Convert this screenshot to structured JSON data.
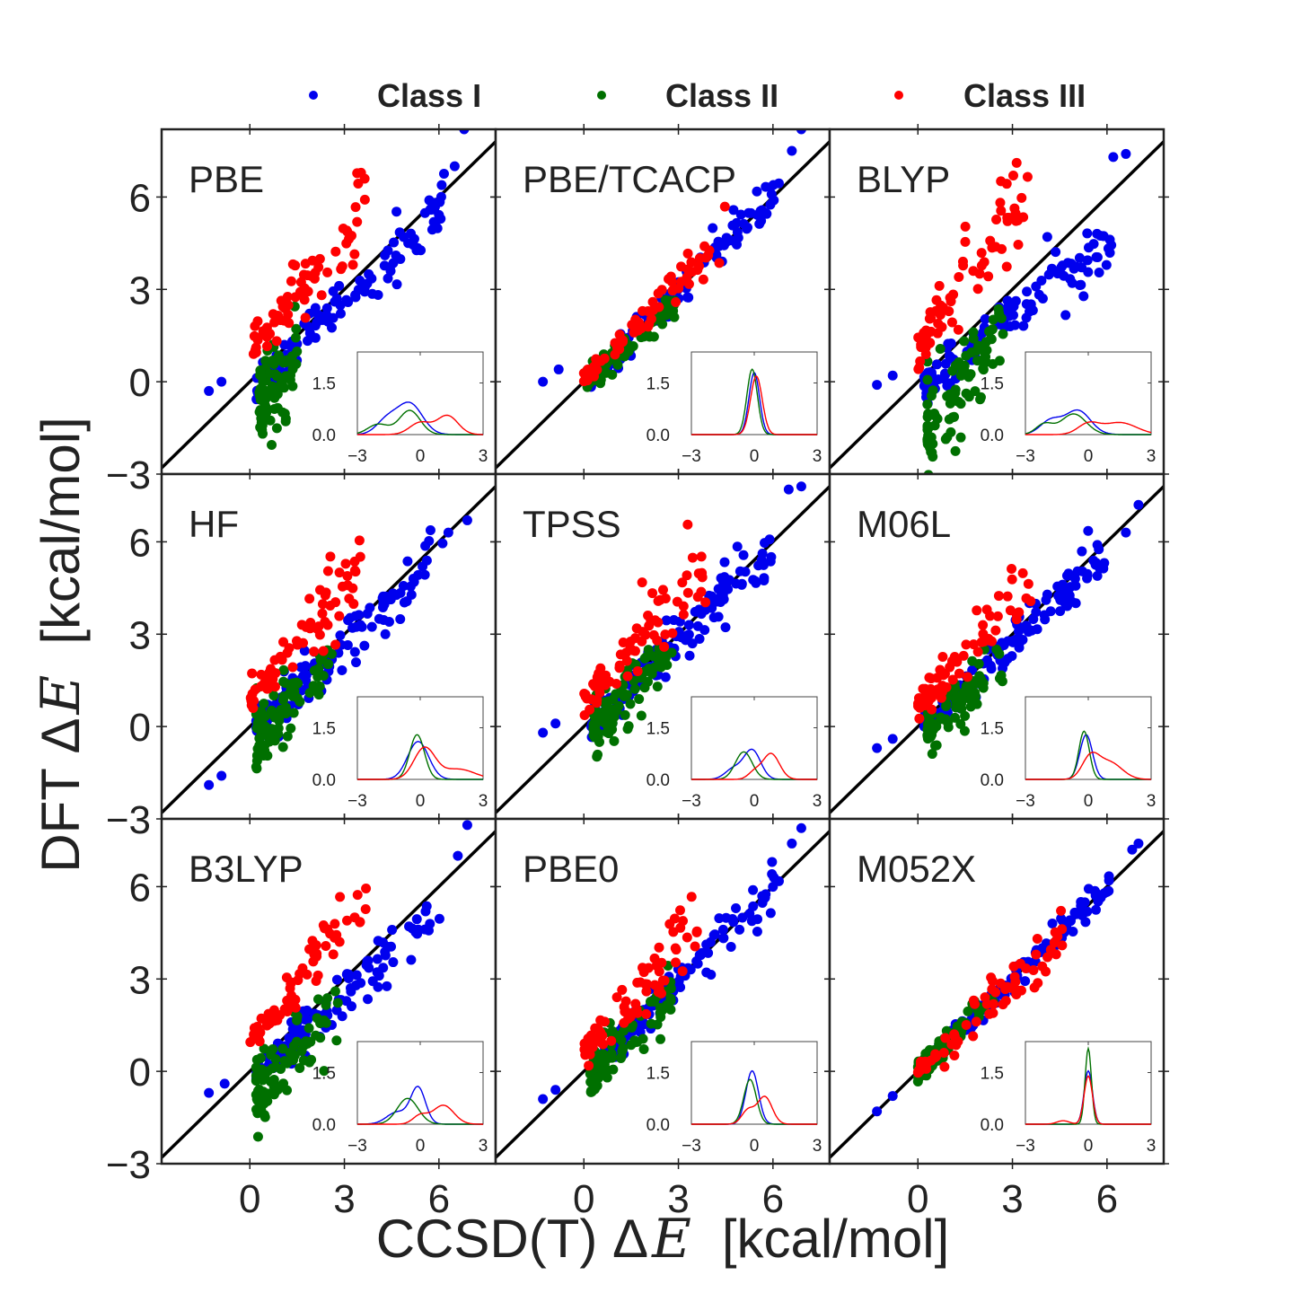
{
  "chart_data": {
    "type": "scatter",
    "layout": "3x3 grid of scatter panels with inset density plots",
    "xlabel_text": "CCSD(T) Δ",
    "ylabel_text": "DFT Δ",
    "label_symbol": "E",
    "unit_text": "[kcal/mol]",
    "xticks": [
      0,
      3,
      6
    ],
    "yticks": [
      -3,
      0,
      3,
      6
    ],
    "xtick_labels": [
      "0",
      "3",
      "6"
    ],
    "ytick_labels": [
      "−3",
      "0",
      "3",
      "6"
    ],
    "xlim": [
      -2.8,
      7.8
    ],
    "ylim": [
      -3.0,
      8.2
    ],
    "reference_line": "y = x",
    "legend": {
      "placement": "top",
      "entries": [
        {
          "label": "Class I",
          "color": "#0000ee"
        },
        {
          "label": "Class II",
          "color": "#007000"
        },
        {
          "label": "Class III",
          "color": "#ff0000"
        }
      ]
    },
    "inset": {
      "xlim": [
        -3,
        3
      ],
      "ylim": [
        0,
        2.4
      ],
      "xtick_labels": [
        "−3",
        "0",
        "3"
      ],
      "ytick_labels": [
        "0.0",
        "1.5"
      ],
      "xticks": [
        -3,
        0,
        3
      ],
      "yticks": [
        0,
        1.5
      ]
    },
    "panels": [
      {
        "title": "PBE",
        "class_I": {
          "slope": 0.99,
          "offset": -0.35,
          "spread": 0.45,
          "low": [
            -1.3,
            -1.0
          ],
          "high": [
            6.6,
            7.0
          ],
          "anchor": [
            [
              -1.3,
              -0.3
            ],
            [
              -0.9,
              0.0
            ],
            [
              6.8,
              8.2
            ],
            [
              6.5,
              7.0
            ]
          ]
        },
        "class_II": {
          "xmin": 0.3,
          "xmax": 1.5,
          "slope": 1.1,
          "offset": -1.0,
          "spread": 0.7
        },
        "class_III": {
          "xmin": 0.1,
          "xmax": 3.8,
          "slope": 1.25,
          "offset": 0.9,
          "spread": 0.6
        },
        "density": {
          "I": [
            [
              -0.5,
              0.9,
              0.6
            ],
            [
              -1.6,
              0.4,
              0.5
            ]
          ],
          "II": [
            [
              -0.5,
              0.7,
              0.5
            ],
            [
              -2.0,
              0.3,
              0.5
            ]
          ],
          "III": [
            [
              1.3,
              0.55,
              0.5
            ],
            [
              0.0,
              0.35,
              0.5
            ]
          ]
        }
      },
      {
        "title": "PBE/TCACP",
        "class_I": {
          "slope": 1.05,
          "offset": -0.2,
          "spread": 0.3,
          "low": [
            -1.4,
            -0.8
          ],
          "high": [
            6.7,
            7.0
          ],
          "anchor": [
            [
              -1.3,
              0.0
            ],
            [
              -0.8,
              0.4
            ],
            [
              6.9,
              8.2
            ],
            [
              6.6,
              7.5
            ]
          ]
        },
        "class_II": {
          "xmin": 0.1,
          "xmax": 2.9,
          "slope": 0.85,
          "offset": 0.0,
          "spread": 0.2
        },
        "class_III": {
          "xmin": 0.0,
          "xmax": 4.5,
          "slope": 1.0,
          "offset": 0.1,
          "spread": 0.25
        },
        "density": {
          "I": [
            [
              0.0,
              1.8,
              0.25
            ]
          ],
          "II": [
            [
              -0.1,
              1.9,
              0.25
            ]
          ],
          "III": [
            [
              0.1,
              1.7,
              0.28
            ]
          ]
        }
      },
      {
        "title": "BLYP",
        "class_I": {
          "slope": 0.85,
          "offset": -0.3,
          "spread": 0.55,
          "low": [
            -1.3,
            -0.8
          ],
          "high": [
            6.0,
            6.7
          ],
          "anchor": [
            [
              -1.3,
              -0.1
            ],
            [
              -0.8,
              0.2
            ],
            [
              6.6,
              7.4
            ],
            [
              6.2,
              7.3
            ]
          ]
        },
        "class_II": {
          "xmin": 0.3,
          "xmax": 2.7,
          "slope": 1.25,
          "offset": -1.7,
          "spread": 0.8
        },
        "class_III": {
          "xmin": 0.0,
          "xmax": 3.7,
          "slope": 1.55,
          "offset": 1.0,
          "spread": 0.7
        },
        "density": {
          "I": [
            [
              -0.5,
              0.7,
              0.6
            ],
            [
              -1.8,
              0.4,
              0.5
            ]
          ],
          "II": [
            [
              -0.7,
              0.6,
              0.6
            ],
            [
              -2.1,
              0.3,
              0.4
            ]
          ],
          "III": [
            [
              1.5,
              0.35,
              0.8
            ],
            [
              0.0,
              0.3,
              0.5
            ]
          ]
        }
      },
      {
        "title": "HF",
        "class_I": {
          "slope": 0.98,
          "offset": -0.3,
          "spread": 0.55,
          "low": [
            -1.3,
            -0.8
          ],
          "high": [
            6.0,
            6.9
          ],
          "anchor": [
            [
              -1.3,
              -1.9
            ],
            [
              -0.9,
              -1.6
            ],
            [
              6.9,
              6.7
            ],
            [
              6.3,
              6.3
            ]
          ]
        },
        "class_II": {
          "xmin": 0.2,
          "xmax": 2.6,
          "slope": 1.1,
          "offset": -0.6,
          "spread": 0.6
        },
        "class_III": {
          "xmin": 0.0,
          "xmax": 3.8,
          "slope": 1.3,
          "offset": 0.8,
          "spread": 0.6
        },
        "density": {
          "I": [
            [
              -0.1,
              1.1,
              0.5
            ]
          ],
          "II": [
            [
              -0.15,
              1.3,
              0.35
            ]
          ],
          "III": [
            [
              0.2,
              0.9,
              0.5
            ],
            [
              1.8,
              0.3,
              0.8
            ]
          ]
        }
      },
      {
        "title": "TPSS",
        "class_I": {
          "slope": 1.0,
          "offset": -0.2,
          "spread": 0.45,
          "low": [
            -1.3,
            -0.8
          ],
          "high": [
            6.3,
            6.8
          ],
          "anchor": [
            [
              -1.3,
              -0.2
            ],
            [
              -0.9,
              0.1
            ],
            [
              6.9,
              7.8
            ],
            [
              6.5,
              7.7
            ]
          ]
        },
        "class_II": {
          "xmin": 0.3,
          "xmax": 2.8,
          "slope": 1.0,
          "offset": -0.4,
          "spread": 0.45
        },
        "class_III": {
          "xmin": 0.0,
          "xmax": 3.9,
          "slope": 1.15,
          "offset": 0.7,
          "spread": 0.55
        },
        "density": {
          "I": [
            [
              -0.1,
              0.85,
              0.4
            ],
            [
              -1.0,
              0.3,
              0.4
            ]
          ],
          "II": [
            [
              -0.5,
              0.8,
              0.4
            ]
          ],
          "III": [
            [
              0.8,
              0.75,
              0.4
            ],
            [
              0.0,
              0.2,
              0.3
            ]
          ]
        }
      },
      {
        "title": "M06L",
        "class_I": {
          "slope": 1.0,
          "offset": -0.25,
          "spread": 0.35,
          "low": [
            -1.3,
            -0.8
          ],
          "high": [
            6.3,
            7.0
          ],
          "anchor": [
            [
              -1.3,
              -0.7
            ],
            [
              -0.8,
              -0.4
            ],
            [
              7.0,
              7.2
            ],
            [
              6.6,
              6.3
            ]
          ]
        },
        "class_II": {
          "xmin": 0.3,
          "xmax": 2.8,
          "slope": 0.95,
          "offset": -0.4,
          "spread": 0.45
        },
        "class_III": {
          "xmin": 0.0,
          "xmax": 3.8,
          "slope": 1.15,
          "offset": 0.6,
          "spread": 0.55
        },
        "density": {
          "I": [
            [
              -0.1,
              1.3,
              0.3
            ]
          ],
          "II": [
            [
              -0.2,
              1.4,
              0.25
            ]
          ],
          "III": [
            [
              0.1,
              0.6,
              0.4
            ],
            [
              1.0,
              0.5,
              0.6
            ]
          ]
        }
      },
      {
        "title": "B3LYP",
        "class_I": {
          "slope": 0.92,
          "offset": -0.3,
          "spread": 0.45,
          "low": [
            -1.3,
            -0.8
          ],
          "high": [
            6.3,
            7.0
          ],
          "anchor": [
            [
              -1.3,
              -0.7
            ],
            [
              -0.8,
              -0.4
            ],
            [
              6.9,
              8.0
            ],
            [
              6.6,
              7.0
            ]
          ]
        },
        "class_II": {
          "xmin": 0.2,
          "xmax": 2.8,
          "slope": 1.1,
          "offset": -0.9,
          "spread": 0.6
        },
        "class_III": {
          "xmin": 0.0,
          "xmax": 3.7,
          "slope": 1.35,
          "offset": 0.8,
          "spread": 0.55
        },
        "density": {
          "I": [
            [
              -0.1,
              1.05,
              0.35
            ],
            [
              -1.1,
              0.35,
              0.5
            ]
          ],
          "II": [
            [
              -0.6,
              0.75,
              0.5
            ]
          ],
          "III": [
            [
              1.1,
              0.55,
              0.5
            ],
            [
              0.0,
              0.25,
              0.35
            ]
          ]
        }
      },
      {
        "title": "PBE0",
        "class_I": {
          "slope": 1.02,
          "offset": -0.15,
          "spread": 0.35,
          "low": [
            -1.3,
            -0.8
          ],
          "high": [
            6.3,
            7.0
          ],
          "anchor": [
            [
              -1.3,
              -0.9
            ],
            [
              -0.9,
              -0.6
            ],
            [
              6.9,
              7.9
            ],
            [
              6.6,
              7.4
            ]
          ]
        },
        "class_II": {
          "xmin": 0.2,
          "xmax": 2.8,
          "slope": 1.0,
          "offset": -0.35,
          "spread": 0.4
        },
        "class_III": {
          "xmin": 0.0,
          "xmax": 3.8,
          "slope": 1.15,
          "offset": 0.6,
          "spread": 0.5
        },
        "density": {
          "I": [
            [
              -0.1,
              1.55,
              0.3
            ]
          ],
          "II": [
            [
              -0.2,
              1.3,
              0.3
            ]
          ],
          "III": [
            [
              0.5,
              0.8,
              0.35
            ],
            [
              -0.3,
              0.4,
              0.3
            ]
          ]
        }
      },
      {
        "title": "M052X",
        "class_I": {
          "slope": 1.0,
          "offset": 0.0,
          "spread": 0.22,
          "low": [
            -1.3,
            -0.8
          ],
          "high": [
            6.3,
            7.0
          ],
          "anchor": [
            [
              -1.3,
              -1.3
            ],
            [
              -0.8,
              -0.8
            ],
            [
              7.0,
              7.4
            ],
            [
              6.8,
              7.2
            ]
          ]
        },
        "class_II": {
          "xmin": 0.0,
          "xmax": 2.4,
          "slope": 1.0,
          "offset": 0.0,
          "spread": 0.2
        },
        "class_III": {
          "xmin": 0.0,
          "xmax": 4.6,
          "slope": 0.95,
          "offset": 0.0,
          "spread": 0.35
        },
        "density": {
          "I": [
            [
              0.0,
              1.55,
              0.2
            ]
          ],
          "II": [
            [
              0.0,
              2.2,
              0.15
            ]
          ],
          "III": [
            [
              0.0,
              1.4,
              0.2
            ],
            [
              -1.2,
              0.1,
              0.3
            ]
          ]
        }
      }
    ]
  }
}
